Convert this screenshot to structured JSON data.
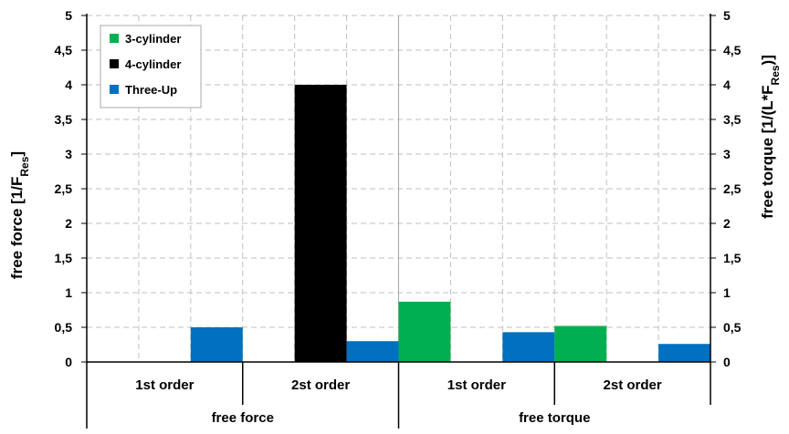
{
  "chart_data": {
    "type": "bar",
    "groups": [
      "free force",
      "free torque"
    ],
    "categories": [
      "1st order",
      "2st order",
      "1st order",
      "2st order"
    ],
    "series": [
      {
        "name": "3-cylinder",
        "color": "#00b050",
        "values": [
          0,
          0,
          0.87,
          0.52
        ]
      },
      {
        "name": "4-cylinder",
        "color": "#000000",
        "values": [
          0,
          4.0,
          0,
          0
        ]
      },
      {
        "name": "Three-Up",
        "color": "#0070c0",
        "values": [
          0.5,
          0.3,
          0.43,
          0.26
        ]
      }
    ],
    "ylabel_left": "free force    [1/F",
    "ylabel_left_sub": "Res",
    "ylabel_left_end": "]",
    "ylabel_right": "free torque    [1/(L*F",
    "ylabel_right_sub": "Res",
    "ylabel_right_end": ")]",
    "ylim": [
      0,
      5
    ],
    "yticks": [
      "0",
      "0,5",
      "1",
      "1,5",
      "2",
      "2,5",
      "3",
      "3,5",
      "4",
      "4,5",
      "5"
    ],
    "grid": true,
    "legend_position": "top-left"
  }
}
